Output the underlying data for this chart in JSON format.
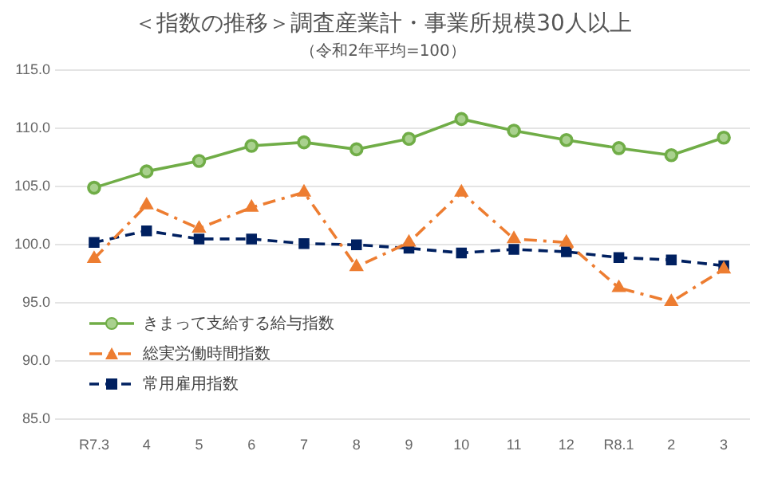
{
  "chart_data": {
    "type": "line",
    "title": "＜指数の推移＞調査産業計・事業所規模30人以上",
    "subtitle": "（令和2年平均=100）",
    "categories": [
      "R7.3",
      "4",
      "5",
      "6",
      "7",
      "8",
      "9",
      "10",
      "11",
      "12",
      "R8.1",
      "2",
      "3"
    ],
    "series": [
      {
        "name": "きまって支給する給与指数",
        "color": "#70ad47",
        "marker": "circle",
        "line_style": "solid",
        "values": [
          104.9,
          106.3,
          107.2,
          108.5,
          108.8,
          108.2,
          109.1,
          110.8,
          109.8,
          109.0,
          108.3,
          107.7,
          109.2
        ]
      },
      {
        "name": "総実労働時間指数",
        "color": "#ed7d31",
        "marker": "triangle",
        "line_style": "dashdot",
        "values": [
          98.8,
          103.4,
          101.4,
          103.2,
          104.5,
          98.1,
          100.2,
          104.5,
          100.5,
          100.2,
          96.3,
          95.1,
          97.9
        ]
      },
      {
        "name": "常用雇用指数",
        "color": "#002060",
        "marker": "square",
        "line_style": "dashed",
        "values": [
          100.2,
          101.2,
          100.5,
          100.5,
          100.1,
          100.0,
          99.7,
          99.3,
          99.6,
          99.4,
          98.9,
          98.7,
          98.2
        ]
      }
    ],
    "ylim": [
      85,
      115
    ],
    "yticks": [
      {
        "value": 85,
        "label": "85.0"
      },
      {
        "value": 90,
        "label": "90.0"
      },
      {
        "value": 95,
        "label": "95.0"
      },
      {
        "value": 100,
        "label": "100.0"
      },
      {
        "value": 105,
        "label": "105.0"
      },
      {
        "value": 110,
        "label": "110.0"
      },
      {
        "value": 115,
        "label": "115.0"
      }
    ],
    "grid": "y",
    "legend": "bottom left"
  }
}
